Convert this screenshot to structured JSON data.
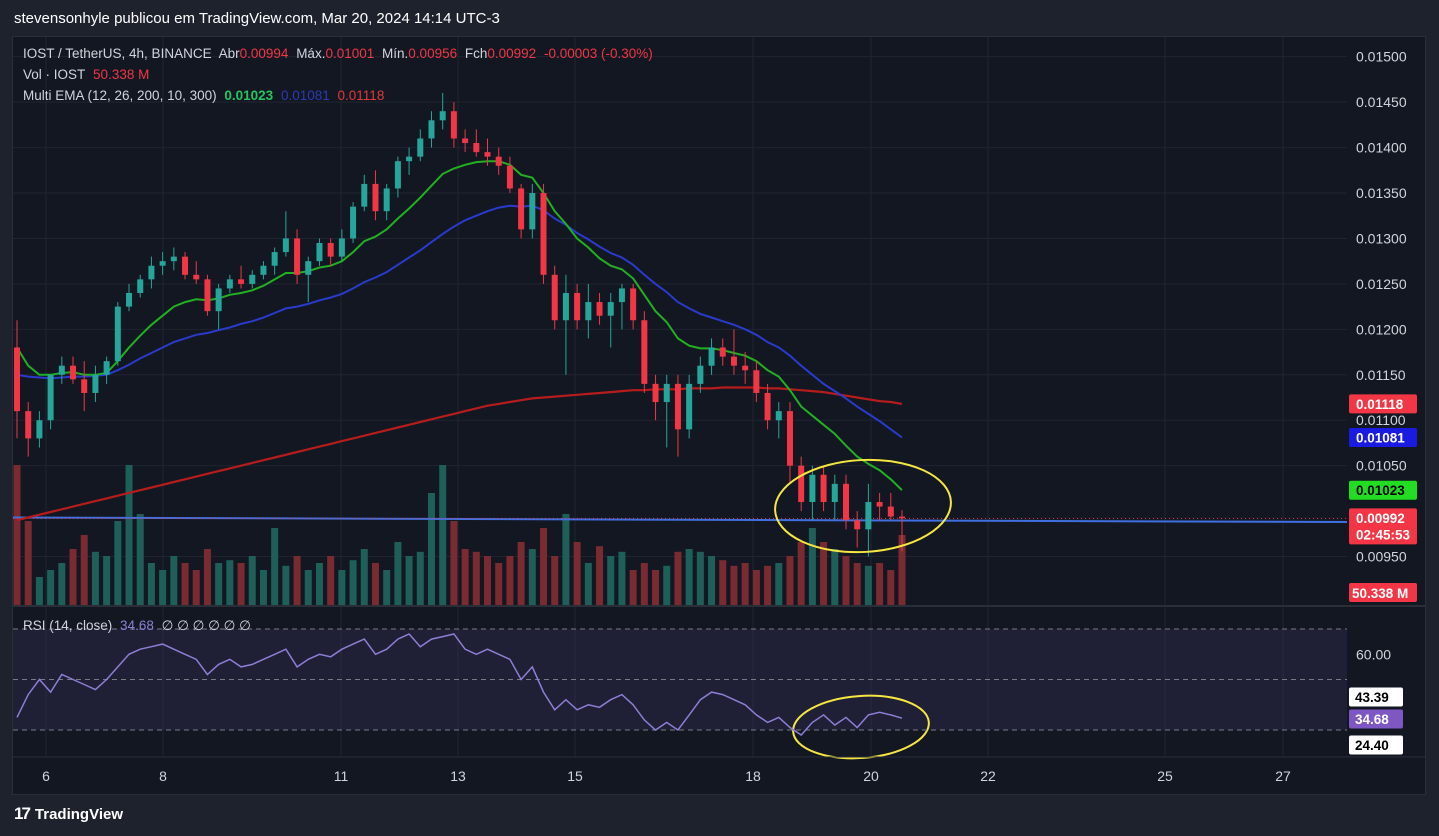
{
  "header": {
    "publisher_line": "stevensonhyle publicou em TradingView.com, Mar 20, 2024 14:14 UTC-3"
  },
  "legend": {
    "symbol": "IOST / TetherUS, 4h, BINANCE",
    "open_label": "Abr",
    "open_value": "0.00994",
    "high_label": "Máx.",
    "high_value": "0.01001",
    "low_label": "Mín.",
    "low_value": "0.00956",
    "close_label": "Fch",
    "close_value": "0.00992",
    "change": "-0.00003 (-0.30%)",
    "vol_label": "Vol · IOST",
    "vol_value": "50.338 M",
    "ema_label": "Multi EMA (12, 26, 200, 10, 300)",
    "ema_values": [
      "0.01023",
      "0.01081",
      "0.01118"
    ],
    "rsi_label": "RSI (14, close)",
    "rsi_value": "34.68",
    "rsi_extra": "∅ ∅ ∅ ∅ ∅ ∅"
  },
  "price_axis": {
    "ticks": [
      "0.01500",
      "0.01450",
      "0.01400",
      "0.01350",
      "0.01300",
      "0.01250",
      "0.01200",
      "0.01150",
      "0.01100",
      "0.01050",
      "0.00950"
    ],
    "tags": [
      {
        "value": "0.01118",
        "color": "#f23645"
      },
      {
        "value": "0.01081",
        "color": "#1a1ae0"
      },
      {
        "value": "0.01023",
        "color": "#22dd22"
      },
      {
        "value": "0.00992",
        "color": "#f23645"
      },
      {
        "value": "50.338 M",
        "color": "#f23645"
      }
    ],
    "countdown": "02:45:53"
  },
  "rsi_axis": {
    "ticks": [
      "60.00"
    ],
    "tags": [
      {
        "value": "43.39",
        "color": "#ffffff"
      },
      {
        "value": "34.68",
        "color": "#7e57c2"
      },
      {
        "value": "24.40",
        "color": "#ffffff"
      }
    ]
  },
  "time_axis": {
    "ticks": [
      "6",
      "8",
      "11",
      "13",
      "15",
      "18",
      "20",
      "22",
      "25",
      "27"
    ]
  },
  "footer": {
    "logo_text": "TradingView"
  },
  "colors": {
    "up": "#26a69a",
    "down": "#f23645",
    "ema12": "#22b022",
    "ema26": "#2a3acc",
    "ema200": "#b71c1c",
    "trendline": "#3f6fe0",
    "rsi": "#8b7fd6",
    "annotation": "#f5e642"
  },
  "chart_data": {
    "type": "candlestick",
    "title": "IOST / TetherUS, 4h, BINANCE",
    "x_labels": [
      "6",
      "8",
      "11",
      "13",
      "15",
      "18",
      "20",
      "22",
      "25",
      "27"
    ],
    "ylim": [
      0.009,
      0.0152
    ],
    "ohlc": [
      [
        0.0118,
        0.0121,
        0.0108,
        0.0111
      ],
      [
        0.0111,
        0.0112,
        0.0106,
        0.0108
      ],
      [
        0.0108,
        0.0111,
        0.0107,
        0.011
      ],
      [
        0.011,
        0.0115,
        0.0109,
        0.0115
      ],
      [
        0.0115,
        0.0117,
        0.0114,
        0.0116
      ],
      [
        0.0116,
        0.0117,
        0.0114,
        0.01145
      ],
      [
        0.01145,
        0.01165,
        0.0111,
        0.0113
      ],
      [
        0.0113,
        0.0116,
        0.0112,
        0.0115
      ],
      [
        0.0115,
        0.0117,
        0.0114,
        0.01165
      ],
      [
        0.01165,
        0.0123,
        0.0116,
        0.01225
      ],
      [
        0.01225,
        0.0125,
        0.0122,
        0.0124
      ],
      [
        0.0124,
        0.0126,
        0.01235,
        0.01255
      ],
      [
        0.01255,
        0.0128,
        0.01245,
        0.0127
      ],
      [
        0.0127,
        0.01285,
        0.0126,
        0.01275
      ],
      [
        0.01275,
        0.0129,
        0.01265,
        0.0128
      ],
      [
        0.0128,
        0.01285,
        0.01255,
        0.0126
      ],
      [
        0.0126,
        0.01275,
        0.0125,
        0.01255
      ],
      [
        0.01255,
        0.0126,
        0.01215,
        0.0122
      ],
      [
        0.0122,
        0.0125,
        0.012,
        0.01245
      ],
      [
        0.01245,
        0.0126,
        0.0124,
        0.01255
      ],
      [
        0.01255,
        0.0127,
        0.01245,
        0.0125
      ],
      [
        0.0125,
        0.01265,
        0.01245,
        0.0126
      ],
      [
        0.0126,
        0.01275,
        0.01255,
        0.0127
      ],
      [
        0.0127,
        0.0129,
        0.0126,
        0.01285
      ],
      [
        0.01285,
        0.0133,
        0.0128,
        0.013
      ],
      [
        0.013,
        0.0131,
        0.0125,
        0.0126
      ],
      [
        0.0126,
        0.0128,
        0.0123,
        0.01275
      ],
      [
        0.01275,
        0.013,
        0.0127,
        0.01295
      ],
      [
        0.01295,
        0.013,
        0.0127,
        0.0128
      ],
      [
        0.0128,
        0.0131,
        0.01275,
        0.013
      ],
      [
        0.013,
        0.0134,
        0.01295,
        0.01335
      ],
      [
        0.01335,
        0.0137,
        0.0133,
        0.0136
      ],
      [
        0.0136,
        0.01375,
        0.0132,
        0.0133
      ],
      [
        0.0133,
        0.0136,
        0.0132,
        0.01355
      ],
      [
        0.01355,
        0.0139,
        0.01345,
        0.01385
      ],
      [
        0.01385,
        0.014,
        0.0137,
        0.0139
      ],
      [
        0.0139,
        0.0142,
        0.01385,
        0.0141
      ],
      [
        0.0141,
        0.0144,
        0.014,
        0.0143
      ],
      [
        0.0143,
        0.0146,
        0.0142,
        0.0144
      ],
      [
        0.0144,
        0.0145,
        0.014,
        0.0141
      ],
      [
        0.0141,
        0.0142,
        0.01395,
        0.01405
      ],
      [
        0.01405,
        0.0142,
        0.0139,
        0.01395
      ],
      [
        0.01395,
        0.0141,
        0.0138,
        0.0139
      ],
      [
        0.0139,
        0.014,
        0.0137,
        0.0138
      ],
      [
        0.0138,
        0.0139,
        0.0135,
        0.01355
      ],
      [
        0.01355,
        0.0136,
        0.013,
        0.0131
      ],
      [
        0.0131,
        0.0136,
        0.013,
        0.0135
      ],
      [
        0.0135,
        0.0136,
        0.0125,
        0.0126
      ],
      [
        0.0126,
        0.0127,
        0.012,
        0.0121
      ],
      [
        0.0121,
        0.0126,
        0.0115,
        0.0124
      ],
      [
        0.0124,
        0.0125,
        0.012,
        0.0121
      ],
      [
        0.0121,
        0.0125,
        0.0119,
        0.0123
      ],
      [
        0.0123,
        0.0124,
        0.01205,
        0.01215
      ],
      [
        0.01215,
        0.0124,
        0.0118,
        0.0123
      ],
      [
        0.0123,
        0.0125,
        0.012,
        0.01245
      ],
      [
        0.01245,
        0.0125,
        0.012,
        0.0121
      ],
      [
        0.0121,
        0.0122,
        0.0113,
        0.0114
      ],
      [
        0.0114,
        0.0115,
        0.011,
        0.0112
      ],
      [
        0.0112,
        0.0115,
        0.0107,
        0.0114
      ],
      [
        0.0114,
        0.0115,
        0.0106,
        0.0109
      ],
      [
        0.0109,
        0.0115,
        0.0108,
        0.0114
      ],
      [
        0.0114,
        0.0117,
        0.0113,
        0.0116
      ],
      [
        0.0116,
        0.0119,
        0.0115,
        0.0118
      ],
      [
        0.0118,
        0.0119,
        0.0116,
        0.0117
      ],
      [
        0.0117,
        0.012,
        0.0115,
        0.0116
      ],
      [
        0.0116,
        0.01175,
        0.0114,
        0.01155
      ],
      [
        0.01155,
        0.01165,
        0.0112,
        0.0113
      ],
      [
        0.0113,
        0.0114,
        0.0109,
        0.011
      ],
      [
        0.011,
        0.0112,
        0.0108,
        0.0111
      ],
      [
        0.0111,
        0.0112,
        0.0103,
        0.0105
      ],
      [
        0.0105,
        0.0106,
        0.01,
        0.0101
      ],
      [
        0.0101,
        0.0105,
        0.0099,
        0.0104
      ],
      [
        0.0104,
        0.0105,
        0.01,
        0.0101
      ],
      [
        0.0101,
        0.0104,
        0.0099,
        0.0103
      ],
      [
        0.0103,
        0.0104,
        0.0098,
        0.0099
      ],
      [
        0.0099,
        0.01,
        0.0096,
        0.0098
      ],
      [
        0.0098,
        0.0103,
        0.0095,
        0.0101
      ],
      [
        0.0101,
        0.0102,
        0.0099,
        0.01005
      ],
      [
        0.01005,
        0.0102,
        0.0099,
        0.00994
      ],
      [
        0.00994,
        0.01001,
        0.00956,
        0.00992
      ]
    ],
    "volume_millions": [
      100,
      60,
      20,
      25,
      30,
      40,
      50,
      38,
      35,
      60,
      100,
      65,
      30,
      25,
      35,
      30,
      25,
      40,
      30,
      32,
      30,
      35,
      25,
      55,
      28,
      35,
      25,
      30,
      35,
      25,
      32,
      40,
      30,
      25,
      45,
      35,
      38,
      80,
      100,
      60,
      40,
      38,
      35,
      30,
      35,
      45,
      40,
      55,
      35,
      65,
      45,
      30,
      42,
      35,
      38,
      25,
      30,
      25,
      28,
      38,
      40,
      38,
      35,
      32,
      28,
      30,
      25,
      28,
      30,
      35,
      45,
      55,
      45,
      40,
      35,
      30,
      28,
      30,
      25,
      50
    ],
    "ema12": [
      0.0118,
      0.0116,
      0.0115,
      0.0115,
      0.01152,
      0.01153,
      0.0115,
      0.0115,
      0.01152,
      0.01165,
      0.0118,
      0.01193,
      0.01205,
      0.01215,
      0.01225,
      0.0123,
      0.01233,
      0.01232,
      0.01234,
      0.01238,
      0.0124,
      0.01243,
      0.01248,
      0.01255,
      0.01262,
      0.01262,
      0.01264,
      0.01268,
      0.0127,
      0.01275,
      0.01285,
      0.01297,
      0.01302,
      0.0131,
      0.01322,
      0.01333,
      0.01345,
      0.01358,
      0.01371,
      0.01377,
      0.01381,
      0.01384,
      0.01385,
      0.01385,
      0.01381,
      0.0137,
      0.01367,
      0.0135,
      0.0133,
      0.01316,
      0.013,
      0.0129,
      0.01278,
      0.0127,
      0.01266,
      0.01256,
      0.01238,
      0.0122,
      0.01208,
      0.0119,
      0.01182,
      0.01179,
      0.01179,
      0.01177,
      0.01174,
      0.01171,
      0.01165,
      0.01155,
      0.01148,
      0.01133,
      0.01115,
      0.01105,
      0.01095,
      0.01085,
      0.01072,
      0.0106,
      0.01052,
      0.01045,
      0.01035,
      0.01023
    ],
    "ema26": [
      0.0115,
      0.01148,
      0.01147,
      0.01146,
      0.01147,
      0.01148,
      0.01148,
      0.01149,
      0.0115,
      0.01155,
      0.01161,
      0.01168,
      0.01174,
      0.0118,
      0.01186,
      0.0119,
      0.01194,
      0.01196,
      0.01199,
      0.01202,
      0.01206,
      0.01209,
      0.01213,
      0.01218,
      0.01223,
      0.01225,
      0.01228,
      0.01232,
      0.01235,
      0.01239,
      0.01245,
      0.01252,
      0.01257,
      0.01263,
      0.01271,
      0.01279,
      0.01287,
      0.01296,
      0.01305,
      0.01313,
      0.0132,
      0.01325,
      0.0133,
      0.01334,
      0.01336,
      0.01335,
      0.01336,
      0.01331,
      0.01322,
      0.01315,
      0.01306,
      0.01299,
      0.01291,
      0.01284,
      0.01279,
      0.01271,
      0.0126,
      0.0125,
      0.01241,
      0.0123,
      0.01223,
      0.01217,
      0.01213,
      0.01209,
      0.01205,
      0.012,
      0.01194,
      0.01186,
      0.0118,
      0.01171,
      0.0116,
      0.0115,
      0.0114,
      0.01132,
      0.01124,
      0.01115,
      0.01107,
      0.01099,
      0.0109,
      0.01081
    ],
    "ema200": [
      0.0099,
      0.00993,
      0.00996,
      0.00999,
      0.01002,
      0.01005,
      0.01008,
      0.01011,
      0.01014,
      0.01017,
      0.0102,
      0.01023,
      0.01026,
      0.01029,
      0.01032,
      0.01035,
      0.01038,
      0.01041,
      0.01044,
      0.01047,
      0.0105,
      0.01053,
      0.01056,
      0.01059,
      0.01062,
      0.01065,
      0.01068,
      0.01071,
      0.01074,
      0.01077,
      0.0108,
      0.01083,
      0.01086,
      0.01089,
      0.01092,
      0.01095,
      0.01098,
      0.01101,
      0.01104,
      0.01107,
      0.0111,
      0.01113,
      0.01116,
      0.01118,
      0.0112,
      0.01122,
      0.01124,
      0.01125,
      0.01126,
      0.01127,
      0.01128,
      0.01129,
      0.0113,
      0.01131,
      0.01132,
      0.01133,
      0.01133,
      0.01134,
      0.01134,
      0.01134,
      0.01135,
      0.01135,
      0.01135,
      0.01136,
      0.01136,
      0.01136,
      0.01136,
      0.01135,
      0.01135,
      0.01134,
      0.01133,
      0.01132,
      0.01131,
      0.01129,
      0.01127,
      0.01125,
      0.01123,
      0.01121,
      0.0112,
      0.01118
    ],
    "trendline": {
      "from": 0.00993,
      "to": 0.00988
    },
    "rsi": [
      35,
      44,
      50,
      45,
      52,
      50,
      48,
      46,
      50,
      55,
      60,
      62,
      63,
      64,
      62,
      60,
      58,
      52,
      56,
      58,
      55,
      56,
      58,
      60,
      62,
      55,
      58,
      60,
      59,
      62,
      64,
      66,
      60,
      62,
      66,
      68,
      63,
      66,
      67,
      68,
      62,
      60,
      62,
      60,
      58,
      50,
      55,
      45,
      38,
      42,
      38,
      40,
      39,
      42,
      44,
      40,
      34,
      30,
      33,
      30,
      36,
      42,
      45,
      44,
      42,
      40,
      36,
      33,
      35,
      31,
      28,
      33,
      36,
      32,
      35,
      31,
      36,
      37,
      36,
      34.68
    ],
    "rsi_levels": {
      "upper": 70,
      "middle": 50,
      "lower": 30
    }
  }
}
